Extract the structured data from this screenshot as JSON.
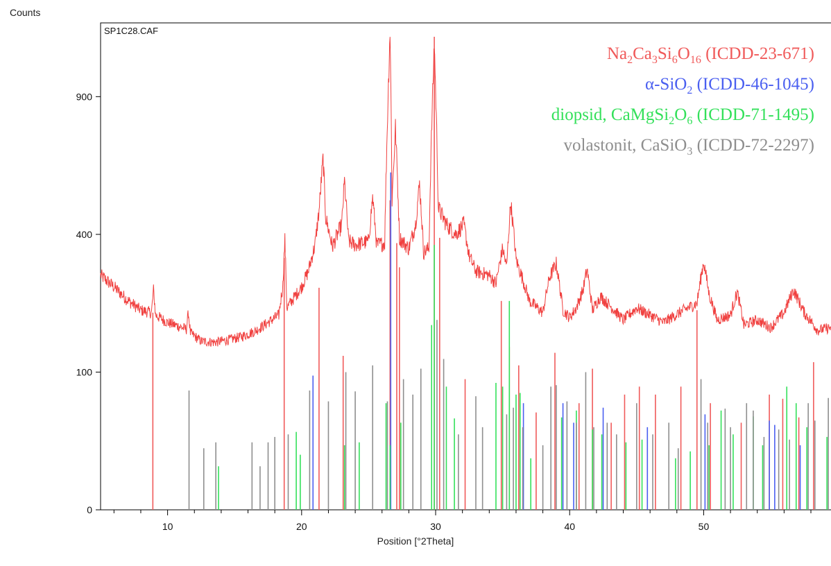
{
  "chart_data": {
    "type": "line",
    "title": "",
    "sample_label": "SP1C28.CAF",
    "ylabel": "Counts",
    "xlabel": "Position [°2Theta]",
    "x_range": [
      5,
      59.5
    ],
    "y_scale": "sqrt",
    "y_range": [
      0,
      1250
    ],
    "x_ticks": [
      10,
      20,
      30,
      40,
      50
    ],
    "y_ticks": [
      0,
      100,
      400,
      900
    ],
    "grid": false,
    "legend_position": "top-right",
    "legend": [
      {
        "parts": [
          "Na",
          "2",
          "Ca",
          "3",
          "Si",
          "6",
          "O",
          "16",
          " (ICDD-23-671)"
        ],
        "color": "#f05a5a"
      },
      {
        "parts": [
          "α-SiO",
          "2",
          " (ICDD-46-1045)"
        ],
        "color": "#4a5ff0"
      },
      {
        "parts": [
          "diopsid, CaMgSi",
          "2",
          "O",
          "6",
          " (ICDD-71-1495)"
        ],
        "color": "#33e05a"
      },
      {
        "parts": [
          "volastonit, CaSiO",
          "3",
          " (ICDD-72-2297)"
        ],
        "color": "#8e8e8e"
      }
    ],
    "pattern": {
      "color": "#f0403f",
      "points": [
        [
          5.0,
          290
        ],
        [
          6.0,
          262
        ],
        [
          7.0,
          232
        ],
        [
          8.0,
          210
        ],
        [
          8.8,
          205
        ],
        [
          8.95,
          255
        ],
        [
          9.1,
          200
        ],
        [
          10.0,
          185
        ],
        [
          11.0,
          176
        ],
        [
          11.4,
          172
        ],
        [
          11.55,
          205
        ],
        [
          11.7,
          165
        ],
        [
          12.5,
          150
        ],
        [
          13.5,
          148
        ],
        [
          14.5,
          152
        ],
        [
          15.5,
          158
        ],
        [
          16.5,
          168
        ],
        [
          17.5,
          185
        ],
        [
          18.3,
          200
        ],
        [
          18.6,
          265
        ],
        [
          18.75,
          385
        ],
        [
          18.9,
          215
        ],
        [
          19.5,
          240
        ],
        [
          20.0,
          262
        ],
        [
          20.5,
          300
        ],
        [
          21.0,
          370
        ],
        [
          21.3,
          470
        ],
        [
          21.6,
          650
        ],
        [
          21.8,
          450
        ],
        [
          22.3,
          365
        ],
        [
          23.0,
          430
        ],
        [
          23.2,
          570
        ],
        [
          23.5,
          380
        ],
        [
          24.0,
          370
        ],
        [
          25.0,
          380
        ],
        [
          25.3,
          515
        ],
        [
          25.6,
          370
        ],
        [
          26.2,
          375
        ],
        [
          26.6,
          1215
        ],
        [
          26.75,
          500
        ],
        [
          27.0,
          770
        ],
        [
          27.3,
          390
        ],
        [
          28.0,
          360
        ],
        [
          28.5,
          430
        ],
        [
          28.8,
          560
        ],
        [
          29.1,
          350
        ],
        [
          29.5,
          360
        ],
        [
          29.9,
          1150
        ],
        [
          30.2,
          480
        ],
        [
          30.8,
          430
        ],
        [
          31.5,
          400
        ],
        [
          32.1,
          430
        ],
        [
          32.5,
          340
        ],
        [
          33.0,
          300
        ],
        [
          34.0,
          290
        ],
        [
          34.5,
          270
        ],
        [
          35.0,
          360
        ],
        [
          35.3,
          310
        ],
        [
          35.6,
          500
        ],
        [
          36.0,
          330
        ],
        [
          36.5,
          280
        ],
        [
          37.0,
          230
        ],
        [
          38.0,
          205
        ],
        [
          38.5,
          285
        ],
        [
          39.0,
          320
        ],
        [
          39.5,
          210
        ],
        [
          40.0,
          195
        ],
        [
          40.5,
          215
        ],
        [
          41.0,
          255
        ],
        [
          41.3,
          305
        ],
        [
          41.7,
          210
        ],
        [
          42.3,
          240
        ],
        [
          43.0,
          220
        ],
        [
          44.0,
          190
        ],
        [
          45.0,
          215
        ],
        [
          46.0,
          200
        ],
        [
          47.0,
          185
        ],
        [
          48.5,
          210
        ],
        [
          49.5,
          225
        ],
        [
          50.0,
          325
        ],
        [
          50.4,
          245
        ],
        [
          51.0,
          190
        ],
        [
          52.0,
          200
        ],
        [
          52.5,
          250
        ],
        [
          53.0,
          180
        ],
        [
          54.0,
          190
        ],
        [
          55.0,
          175
        ],
        [
          56.0,
          205
        ],
        [
          56.7,
          255
        ],
        [
          57.5,
          205
        ],
        [
          58.5,
          170
        ],
        [
          59.5,
          175
        ]
      ]
    },
    "reference_lines": [
      {
        "phase": "Na2Ca3Si6O16 (ICDD-23-671)",
        "color": "#f05a5a",
        "lines": [
          [
            8.9,
            205
          ],
          [
            18.7,
            335
          ],
          [
            21.3,
            260
          ],
          [
            23.1,
            125
          ],
          [
            26.6,
            505
          ],
          [
            27.1,
            375
          ],
          [
            27.3,
            310
          ],
          [
            29.9,
            1180
          ],
          [
            30.3,
            390
          ],
          [
            32.2,
            90
          ],
          [
            34.9,
            230
          ],
          [
            35.5,
            140
          ],
          [
            36.2,
            110
          ],
          [
            37.5,
            50
          ],
          [
            38.9,
            130
          ],
          [
            40.7,
            60
          ],
          [
            41.7,
            105
          ],
          [
            43.1,
            40
          ],
          [
            44.1,
            70
          ],
          [
            45.2,
            80
          ],
          [
            46.4,
            70
          ],
          [
            48.3,
            80
          ],
          [
            49.5,
            210
          ],
          [
            50.5,
            60
          ],
          [
            52.8,
            40
          ],
          [
            54.9,
            70
          ],
          [
            55.9,
            65
          ],
          [
            57.1,
            45
          ],
          [
            58.2,
            115
          ]
        ]
      },
      {
        "phase": "α-SiO2 (ICDD-46-1045)",
        "color": "#4a5ff0",
        "lines": [
          [
            20.85,
            95
          ],
          [
            26.65,
            600
          ],
          [
            36.55,
            60
          ],
          [
            39.5,
            60
          ],
          [
            40.3,
            40
          ],
          [
            42.5,
            55
          ],
          [
            45.8,
            36
          ],
          [
            50.1,
            48
          ],
          [
            54.9,
            42
          ],
          [
            55.3,
            38
          ],
          [
            57.2,
            22
          ],
          [
            59.9,
            35
          ]
        ]
      },
      {
        "phase": "diopsid, CaMgSi2O6 (ICDD-71-1495)",
        "color": "#33e05a",
        "lines": [
          [
            13.8,
            10
          ],
          [
            19.6,
            32
          ],
          [
            19.9,
            16
          ],
          [
            23.2,
            22
          ],
          [
            24.3,
            24
          ],
          [
            26.3,
            60
          ],
          [
            26.6,
            22
          ],
          [
            27.4,
            40
          ],
          [
            29.7,
            180
          ],
          [
            29.9,
            370
          ],
          [
            30.8,
            80
          ],
          [
            31.4,
            44
          ],
          [
            34.5,
            85
          ],
          [
            35.0,
            80
          ],
          [
            35.5,
            230
          ],
          [
            36.0,
            70
          ],
          [
            36.3,
            72
          ],
          [
            37.1,
            14
          ],
          [
            39.4,
            45
          ],
          [
            40.5,
            52
          ],
          [
            41.7,
            34
          ],
          [
            42.4,
            30
          ],
          [
            44.2,
            24
          ],
          [
            45.4,
            26
          ],
          [
            47.9,
            14
          ],
          [
            49.0,
            18
          ],
          [
            50.4,
            22
          ],
          [
            51.3,
            52
          ],
          [
            52.2,
            30
          ],
          [
            53.7,
            46
          ],
          [
            54.4,
            22
          ],
          [
            56.2,
            80
          ],
          [
            56.9,
            60
          ],
          [
            57.7,
            36
          ],
          [
            59.2,
            28
          ]
        ]
      },
      {
        "phase": "volastonit, CaSiO3 (ICDD-72-2297)",
        "color": "#8e8e8e",
        "lines": [
          [
            11.6,
            75
          ],
          [
            12.7,
            20
          ],
          [
            13.6,
            24
          ],
          [
            16.3,
            24
          ],
          [
            16.9,
            10
          ],
          [
            17.5,
            24
          ],
          [
            18.0,
            28
          ],
          [
            19.0,
            30
          ],
          [
            20.6,
            75
          ],
          [
            22.0,
            62
          ],
          [
            23.3,
            100
          ],
          [
            24.0,
            74
          ],
          [
            25.3,
            110
          ],
          [
            26.4,
            62
          ],
          [
            27.6,
            90
          ],
          [
            28.3,
            70
          ],
          [
            28.9,
            105
          ],
          [
            30.1,
            190
          ],
          [
            30.6,
            120
          ],
          [
            31.7,
            30
          ],
          [
            33.0,
            68
          ],
          [
            33.5,
            36
          ],
          [
            35.3,
            48
          ],
          [
            35.8,
            55
          ],
          [
            36.5,
            36
          ],
          [
            38.0,
            22
          ],
          [
            38.6,
            80
          ],
          [
            39.0,
            82
          ],
          [
            39.8,
            62
          ],
          [
            40.5,
            40
          ],
          [
            41.2,
            100
          ],
          [
            41.8,
            36
          ],
          [
            42.8,
            40
          ],
          [
            43.5,
            30
          ],
          [
            45.0,
            60
          ],
          [
            46.2,
            30
          ],
          [
            47.4,
            40
          ],
          [
            48.1,
            20
          ],
          [
            49.8,
            90
          ],
          [
            50.3,
            40
          ],
          [
            51.6,
            54
          ],
          [
            52.0,
            36
          ],
          [
            53.2,
            60
          ],
          [
            53.7,
            52
          ],
          [
            54.5,
            28
          ],
          [
            55.6,
            34
          ],
          [
            56.4,
            26
          ],
          [
            57.8,
            60
          ],
          [
            58.3,
            42
          ],
          [
            59.3,
            66
          ]
        ]
      }
    ]
  }
}
